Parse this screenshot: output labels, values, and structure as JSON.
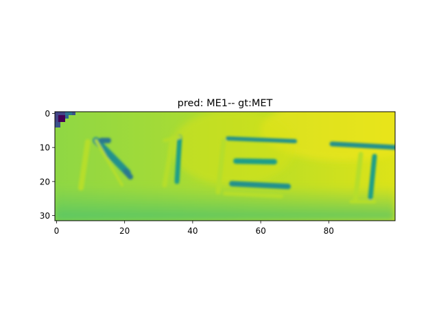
{
  "chart_data": {
    "type": "heatmap",
    "title": "pred: ME1-- gt:MET",
    "xlabel": "",
    "ylabel": "",
    "image_size": [
      100,
      32
    ],
    "x_range": [
      -0.5,
      99.5
    ],
    "y_range": [
      31.5,
      -0.5
    ],
    "x_ticks": [
      0,
      20,
      40,
      60,
      80
    ],
    "y_ticks": [
      0,
      10,
      20,
      30
    ],
    "colormap": "viridis",
    "grid": false,
    "legend": "none",
    "content_text": "MET"
  }
}
